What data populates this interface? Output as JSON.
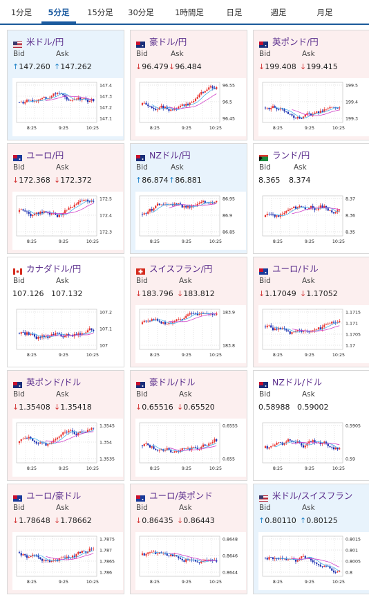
{
  "tabs": [
    {
      "label": "1分足",
      "active": false
    },
    {
      "label": "5分足",
      "active": true
    },
    {
      "label": "15分足",
      "active": false
    },
    {
      "label": "30分足",
      "active": false
    },
    {
      "label": "1時間足",
      "active": false
    },
    {
      "label": "日足",
      "active": false
    },
    {
      "label": "週足",
      "active": false
    },
    {
      "label": "月足",
      "active": false
    }
  ],
  "labels": {
    "bid": "Bid",
    "ask": "Ask"
  },
  "colors": {
    "up": "#1e82c8",
    "down": "#d23030",
    "candle_up": "#e8332e",
    "candle_down": "#1a2fb0",
    "ma_fast": "#4ab0e8",
    "ma_slow": "#d040c8"
  },
  "x_ticks": [
    "8:25",
    "9:25",
    "10:25"
  ],
  "cards": [
    {
      "pair": "米ドル/円",
      "flag": "us-jp-flag-icon",
      "trend": "up",
      "bid": "147.260",
      "ask": "147.262",
      "y_ticks": [
        "147.4",
        "147.3",
        "147.2",
        "147.1"
      ]
    },
    {
      "pair": "豪ドル/円",
      "flag": "au-jp-flag-icon",
      "trend": "down",
      "bid": "96.479",
      "ask": "96.484",
      "y_ticks": [
        "96.55",
        "96.5",
        "96.45"
      ]
    },
    {
      "pair": "英ポンド/円",
      "flag": "gb-jp-flag-icon",
      "trend": "down",
      "bid": "199.408",
      "ask": "199.415",
      "y_ticks": [
        "199.5",
        "199.4",
        "199.3"
      ]
    },
    {
      "pair": "ユーロ/円",
      "flag": "eu-jp-flag-icon",
      "trend": "down",
      "bid": "172.368",
      "ask": "172.372",
      "y_ticks": [
        "172.5",
        "172.4",
        "172.3"
      ]
    },
    {
      "pair": "NZドル/円",
      "flag": "nz-jp-flag-icon",
      "trend": "up",
      "bid": "86.874",
      "ask": "86.881",
      "y_ticks": [
        "86.95",
        "86.9",
        "86.85"
      ]
    },
    {
      "pair": "ランド/円",
      "flag": "za-jp-flag-icon",
      "trend": "flat",
      "bid": "8.365",
      "ask": "8.374",
      "y_ticks": [
        "8.37",
        "8.36",
        "8.35"
      ]
    },
    {
      "pair": "カナダドル/円",
      "flag": "ca-jp-flag-icon",
      "trend": "flat",
      "bid": "107.126",
      "ask": "107.132",
      "y_ticks": [
        "107.2",
        "107.1",
        "107"
      ]
    },
    {
      "pair": "スイスフラン/円",
      "flag": "ch-jp-flag-icon",
      "trend": "down",
      "bid": "183.796",
      "ask": "183.812",
      "y_ticks": [
        "183.9",
        "183.8"
      ]
    },
    {
      "pair": "ユーロ/ドル",
      "flag": "eu-us-flag-icon",
      "trend": "down",
      "bid": "1.17049",
      "ask": "1.17052",
      "y_ticks": [
        "1.1715",
        "1.171",
        "1.1705",
        "1.17"
      ]
    },
    {
      "pair": "英ポンド/ドル",
      "flag": "gb-us-flag-icon",
      "trend": "down",
      "bid": "1.35408",
      "ask": "1.35418",
      "y_ticks": [
        "1.3545",
        "1.354",
        "1.3535"
      ]
    },
    {
      "pair": "豪ドル/ドル",
      "flag": "au-us-flag-icon",
      "trend": "down",
      "bid": "0.65516",
      "ask": "0.65520",
      "y_ticks": [
        "0.6555",
        "0.655"
      ]
    },
    {
      "pair": "NZドル/ドル",
      "flag": "nz-us-flag-icon",
      "trend": "flat",
      "bid": "0.58988",
      "ask": "0.59002",
      "y_ticks": [
        "0.5905",
        "0.59"
      ]
    },
    {
      "pair": "ユーロ/豪ドル",
      "flag": "eu-au-flag-icon",
      "trend": "down",
      "bid": "1.78648",
      "ask": "1.78662",
      "y_ticks": [
        "1.7875",
        "1.787",
        "1.7865",
        "1.786"
      ]
    },
    {
      "pair": "ユーロ/英ポンド",
      "flag": "eu-gb-flag-icon",
      "trend": "down",
      "bid": "0.86435",
      "ask": "0.86443",
      "y_ticks": [
        "0.8648",
        "0.8646",
        "0.8644"
      ]
    },
    {
      "pair": "米ドル/スイスフラン",
      "flag": "us-ch-flag-icon",
      "trend": "up",
      "bid": "0.80110",
      "ask": "0.80125",
      "y_ticks": [
        "0.8015",
        "0.801",
        "0.8005",
        "0.8"
      ]
    }
  ]
}
